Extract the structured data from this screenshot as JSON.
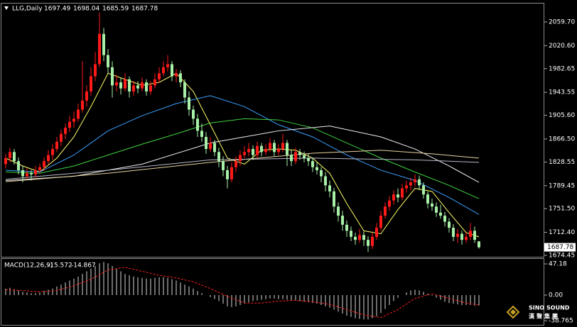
{
  "chart_data": [
    {
      "type": "candlestick",
      "title": "LLG,Daily",
      "up_color": "#ff1a1a",
      "down_color": "#a8f0a8",
      "ylim": [
        1672.1,
        2090.1
      ],
      "yticks": [
        {
          "value": 2059.7,
          "label": "2059.70"
        },
        {
          "value": 2020.6,
          "label": "2020.60"
        },
        {
          "value": 1982.65,
          "label": "1982.65"
        },
        {
          "value": 1943.55,
          "label": "1943.55"
        },
        {
          "value": 1905.6,
          "label": "1905.60"
        },
        {
          "value": 1866.5,
          "label": "1866.50"
        },
        {
          "value": 1828.55,
          "label": "1828.55"
        },
        {
          "value": 1789.45,
          "label": "1789.45"
        },
        {
          "value": 1751.5,
          "label": "1751.50"
        },
        {
          "value": 1712.4,
          "label": "1712.40"
        },
        {
          "value": 1674.45,
          "label": "1674.45"
        }
      ],
      "ohlc": [
        [
          1825,
          1842,
          1818,
          1835
        ],
        [
          1835,
          1852,
          1828,
          1845
        ],
        [
          1845,
          1850,
          1824,
          1830
        ],
        [
          1830,
          1836,
          1808,
          1815
        ],
        [
          1815,
          1822,
          1795,
          1805
        ],
        [
          1805,
          1818,
          1800,
          1810
        ],
        [
          1810,
          1815,
          1798,
          1808
        ],
        [
          1808,
          1822,
          1803,
          1815
        ],
        [
          1815,
          1826,
          1810,
          1820
        ],
        [
          1820,
          1836,
          1814,
          1830
        ],
        [
          1830,
          1848,
          1825,
          1840
        ],
        [
          1840,
          1858,
          1832,
          1850
        ],
        [
          1850,
          1870,
          1845,
          1862
        ],
        [
          1862,
          1882,
          1855,
          1875
        ],
        [
          1875,
          1892,
          1866,
          1885
        ],
        [
          1885,
          1905,
          1878,
          1895
        ],
        [
          1895,
          1912,
          1885,
          1900
        ],
        [
          1900,
          1925,
          1895,
          1915
        ],
        [
          1915,
          1995,
          1910,
          1930
        ],
        [
          1930,
          1955,
          1920,
          1945
        ],
        [
          1945,
          1985,
          1938,
          1970
        ],
        [
          1970,
          2010,
          1962,
          1990
        ],
        [
          1990,
          2075,
          1985,
          2040
        ],
        [
          2040,
          2050,
          1995,
          2005
        ],
        [
          2005,
          2015,
          1975,
          1985
        ],
        [
          1985,
          1995,
          1935,
          1955
        ],
        [
          1955,
          1972,
          1945,
          1960
        ],
        [
          1960,
          1968,
          1940,
          1950
        ],
        [
          1950,
          1975,
          1945,
          1965
        ],
        [
          1965,
          1970,
          1935,
          1945
        ],
        [
          1945,
          1962,
          1938,
          1955
        ],
        [
          1955,
          1962,
          1942,
          1950
        ],
        [
          1950,
          1968,
          1945,
          1960
        ],
        [
          1960,
          1965,
          1938,
          1945
        ],
        [
          1945,
          1962,
          1940,
          1955
        ],
        [
          1955,
          1975,
          1950,
          1965
        ],
        [
          1965,
          1985,
          1960,
          1975
        ],
        [
          1975,
          1995,
          1970,
          1985
        ],
        [
          1985,
          2005,
          1978,
          1990
        ],
        [
          1990,
          1995,
          1962,
          1970
        ],
        [
          1970,
          1982,
          1960,
          1975
        ],
        [
          1975,
          1980,
          1952,
          1960
        ],
        [
          1960,
          1965,
          1925,
          1935
        ],
        [
          1935,
          1945,
          1905,
          1915
        ],
        [
          1915,
          1922,
          1890,
          1900
        ],
        [
          1900,
          1908,
          1870,
          1880
        ],
        [
          1880,
          1892,
          1862,
          1870
        ],
        [
          1870,
          1878,
          1842,
          1850
        ],
        [
          1850,
          1870,
          1845,
          1860
        ],
        [
          1860,
          1865,
          1838,
          1845
        ],
        [
          1845,
          1852,
          1820,
          1830
        ],
        [
          1830,
          1838,
          1805,
          1815
        ],
        [
          1815,
          1822,
          1785,
          1800
        ],
        [
          1800,
          1828,
          1795,
          1820
        ],
        [
          1820,
          1838,
          1812,
          1830
        ],
        [
          1830,
          1848,
          1822,
          1840
        ],
        [
          1840,
          1855,
          1835,
          1845
        ],
        [
          1845,
          1860,
          1838,
          1850
        ],
        [
          1850,
          1856,
          1832,
          1840
        ],
        [
          1840,
          1862,
          1835,
          1855
        ],
        [
          1855,
          1860,
          1838,
          1845
        ],
        [
          1845,
          1858,
          1840,
          1850
        ],
        [
          1850,
          1868,
          1845,
          1860
        ],
        [
          1860,
          1865,
          1838,
          1845
        ],
        [
          1845,
          1858,
          1840,
          1850
        ],
        [
          1850,
          1875,
          1845,
          1860
        ],
        [
          1860,
          1865,
          1822,
          1840
        ],
        [
          1840,
          1848,
          1822,
          1830
        ],
        [
          1830,
          1852,
          1825,
          1845
        ],
        [
          1845,
          1850,
          1832,
          1840
        ],
        [
          1840,
          1846,
          1828,
          1835
        ],
        [
          1835,
          1842,
          1822,
          1830
        ],
        [
          1830,
          1836,
          1812,
          1820
        ],
        [
          1820,
          1828,
          1808,
          1815
        ],
        [
          1815,
          1820,
          1795,
          1805
        ],
        [
          1805,
          1812,
          1780,
          1790
        ],
        [
          1790,
          1798,
          1770,
          1780
        ],
        [
          1780,
          1786,
          1745,
          1755
        ],
        [
          1755,
          1762,
          1730,
          1740
        ],
        [
          1740,
          1748,
          1715,
          1725
        ],
        [
          1725,
          1732,
          1705,
          1715
        ],
        [
          1715,
          1722,
          1698,
          1705
        ],
        [
          1705,
          1712,
          1692,
          1700
        ],
        [
          1700,
          1718,
          1695,
          1708
        ],
        [
          1708,
          1714,
          1690,
          1700
        ],
        [
          1700,
          1706,
          1680,
          1690
        ],
        [
          1690,
          1712,
          1685,
          1705
        ],
        [
          1705,
          1728,
          1700,
          1720
        ],
        [
          1720,
          1748,
          1715,
          1740
        ],
        [
          1740,
          1762,
          1735,
          1755
        ],
        [
          1755,
          1772,
          1748,
          1765
        ],
        [
          1765,
          1782,
          1758,
          1775
        ],
        [
          1775,
          1785,
          1762,
          1770
        ],
        [
          1770,
          1792,
          1765,
          1785
        ],
        [
          1785,
          1798,
          1778,
          1790
        ],
        [
          1790,
          1802,
          1782,
          1795
        ],
        [
          1795,
          1808,
          1788,
          1800
        ],
        [
          1800,
          1806,
          1782,
          1790
        ],
        [
          1790,
          1795,
          1768,
          1775
        ],
        [
          1775,
          1780,
          1752,
          1760
        ],
        [
          1760,
          1768,
          1748,
          1755
        ],
        [
          1755,
          1762,
          1738,
          1745
        ],
        [
          1745,
          1758,
          1735,
          1740
        ],
        [
          1740,
          1746,
          1722,
          1730
        ],
        [
          1730,
          1736,
          1712,
          1720
        ],
        [
          1720,
          1726,
          1698,
          1705
        ],
        [
          1705,
          1718,
          1695,
          1710
        ],
        [
          1710,
          1715,
          1692,
          1700
        ],
        [
          1700,
          1712,
          1695,
          1705
        ],
        [
          1705,
          1728,
          1700,
          1715
        ],
        [
          1715,
          1722,
          1695,
          1700
        ],
        [
          1697.49,
          1698.04,
          1685.59,
          1687.78
        ]
      ],
      "moving_averages": [
        {
          "color": "#ffff66",
          "x": [
            0,
            4,
            8,
            12,
            16,
            20,
            24,
            28,
            32,
            36,
            40,
            44,
            48,
            52,
            56,
            60,
            64,
            68,
            72,
            76,
            80,
            84,
            88,
            92,
            96,
            100,
            104,
            108,
            111
          ],
          "values": [
            1835,
            1822,
            1812,
            1835,
            1870,
            1920,
            1975,
            1965,
            1955,
            1960,
            1975,
            1945,
            1890,
            1835,
            1825,
            1848,
            1850,
            1848,
            1835,
            1810,
            1760,
            1715,
            1710,
            1750,
            1785,
            1780,
            1745,
            1712,
            1705
          ]
        },
        {
          "color": "#3aa0ff",
          "x": [
            0,
            8,
            16,
            24,
            32,
            40,
            48,
            56,
            64,
            72,
            80,
            88,
            96,
            104,
            111
          ],
          "values": [
            1815,
            1812,
            1840,
            1880,
            1905,
            1925,
            1938,
            1920,
            1890,
            1870,
            1840,
            1815,
            1798,
            1770,
            1742
          ]
        },
        {
          "color": "#3fd43f",
          "x": [
            0,
            8,
            16,
            24,
            32,
            40,
            48,
            56,
            64,
            72,
            80,
            88,
            96,
            104,
            111
          ],
          "values": [
            1812,
            1810,
            1822,
            1840,
            1858,
            1875,
            1893,
            1900,
            1898,
            1885,
            1860,
            1835,
            1812,
            1790,
            1768
          ]
        },
        {
          "color": "#f0f0f0",
          "x": [
            0,
            16,
            32,
            48,
            64,
            76,
            88,
            96,
            104,
            111
          ],
          "values": [
            1798,
            1805,
            1825,
            1860,
            1880,
            1888,
            1870,
            1850,
            1822,
            1795
          ]
        },
        {
          "color": "#e8d3a0",
          "x": [
            0,
            24,
            48,
            72,
            88,
            100,
            111
          ],
          "values": [
            1796,
            1810,
            1828,
            1843,
            1848,
            1842,
            1835
          ]
        },
        {
          "color": "#b8b8c8",
          "x": [
            0,
            24,
            48,
            72,
            96,
            111
          ],
          "values": [
            1800,
            1815,
            1832,
            1835,
            1832,
            1828
          ]
        }
      ]
    },
    {
      "type": "macd",
      "title": "MACD(12,26,9)",
      "ylim": [
        -45.0,
        54.7
      ],
      "yticks": [
        47.18,
        {
          "value": 0,
          "label": "0.00"
        },
        -38.765
      ],
      "color": "#d8d8d8",
      "signal_color": "#ff2020",
      "values": [
        10,
        11,
        9,
        7,
        5,
        4,
        3,
        3,
        4,
        6,
        8,
        10,
        13,
        16,
        19,
        22,
        25,
        28,
        32,
        36,
        40,
        44,
        48,
        50,
        48,
        44,
        40,
        36,
        32,
        30,
        28,
        27,
        26,
        25,
        25,
        26,
        27,
        27,
        26,
        24,
        22,
        19,
        16,
        13,
        10,
        6,
        3,
        0,
        -3,
        -6,
        -9,
        -13,
        -17,
        -18,
        -17,
        -15,
        -13,
        -11,
        -9,
        -8,
        -7,
        -6,
        -5,
        -5,
        -6,
        -6,
        -7,
        -8,
        -8,
        -9,
        -10,
        -11,
        -12,
        -13,
        -15,
        -17,
        -19,
        -22,
        -25,
        -28,
        -31,
        -33,
        -35,
        -36,
        -37,
        -37,
        -35,
        -32,
        -27,
        -21,
        -15,
        -9,
        -4,
        0,
        4,
        7,
        8,
        7,
        5,
        2,
        -1,
        -4,
        -7,
        -10,
        -12,
        -13,
        -14,
        -15,
        -15,
        -15,
        -16,
        -15.572
      ],
      "signal": {
        "x": [
          0,
          4,
          8,
          12,
          16,
          20,
          24,
          28,
          32,
          36,
          40,
          44,
          48,
          52,
          56,
          60,
          64,
          68,
          72,
          76,
          80,
          84,
          88,
          92,
          96,
          100,
          104,
          108,
          111
        ],
        "values": [
          8,
          7,
          5,
          7,
          14,
          24,
          38,
          42,
          36,
          30,
          26,
          20,
          10,
          -2,
          -12,
          -12,
          -9,
          -8,
          -10,
          -14,
          -22,
          -30,
          -34,
          -22,
          -5,
          2,
          -5,
          -12,
          -14.867
        ]
      }
    }
  ],
  "brand": {
    "name": "SINO SOUND",
    "chinese": "漢聲集團"
  }
}
